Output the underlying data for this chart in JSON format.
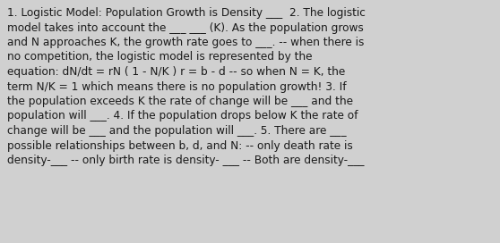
{
  "background_color": "#d0d0d0",
  "text_color": "#1a1a1a",
  "font_size": 8.7,
  "font_family": "DejaVu Sans",
  "figsize": [
    5.58,
    2.72
  ],
  "dpi": 100,
  "line1": "1. Logistic Model: Population Growth is Density ___  2. The logistic",
  "line2": "model takes into account the ___ ___ (K). As the population grows",
  "line3": "and N approaches K, the growth rate goes to ___. -- when there is",
  "line4": "no competition, the logistic model is represented by the",
  "line5": "equation: dN/dt = rN ( 1 - N/K ) r = b - d -- so when N = K, the",
  "line6": "term N/K = 1 which means there is no population growth! 3. If",
  "line7": "the population exceeds K the rate of change will be ___ and the",
  "line8": "population will ___. 4. If the population drops below K the rate of",
  "line9": "change will be ___ and the population will ___. 5. There are ___",
  "line10": "possible relationships between b, d, and N: -- only death rate is",
  "line11": "density-___ -- only birth rate is density- ___ -- Both are density-___"
}
